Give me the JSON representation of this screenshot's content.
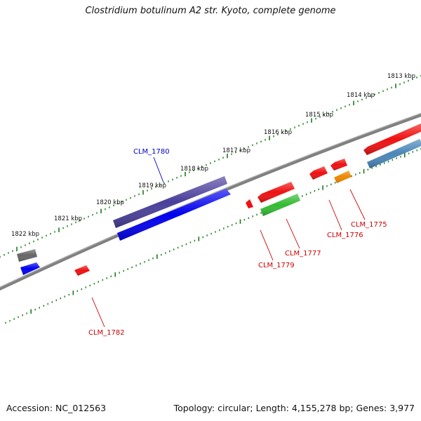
{
  "title": "Clostridium botulinum A2 str. Kyoto, complete genome",
  "footer": {
    "accession": "Accession: NC_012563",
    "summary": "Topology: circular; Length: 4,155,278 bp; Genes: 3,977"
  },
  "scale_ticks": [
    "1813 kbp",
    "1814 kbp",
    "1815 kbp",
    "1816 kbp",
    "1817 kbp",
    "1818 kbp",
    "1819 kbp",
    "1820 kbp",
    "1821 kbp",
    "1822 kbp"
  ],
  "gene_labels": [
    {
      "id": "CLM_1780",
      "text": "CLM_1780",
      "color": "#0000cc"
    },
    {
      "id": "CLM_1782",
      "text": "CLM_1782",
      "color": "#cc0000"
    },
    {
      "id": "CLM_1779",
      "text": "CLM_1779",
      "color": "#cc0000"
    },
    {
      "id": "CLM_1777",
      "text": "CLM_1777",
      "color": "#cc0000"
    },
    {
      "id": "CLM_1776",
      "text": "CLM_1776",
      "color": "#cc0000"
    },
    {
      "id": "CLM_1775",
      "text": "CLM_1775",
      "color": "#cc0000"
    }
  ],
  "colors": {
    "backbone": "#808080",
    "tick_marks": "#1a7a1a",
    "gene_red": "#ee1111",
    "gene_blue": "#0000ee",
    "gene_slate": "#4a3f9a",
    "gene_green": "#33bb33",
    "gene_orange": "#ee8800",
    "gene_steelblue": "#4a86b8",
    "gene_gray": "#666666"
  }
}
